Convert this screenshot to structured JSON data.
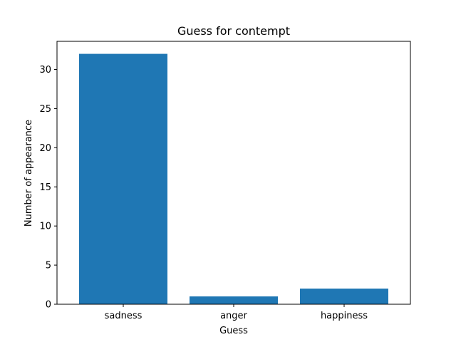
{
  "chart_data": {
    "type": "bar",
    "title": "Guess for contempt",
    "xlabel": "Guess",
    "ylabel": "Number of appearance",
    "categories": [
      "sadness",
      "anger",
      "happiness"
    ],
    "values": [
      32,
      1,
      2
    ],
    "ylim": [
      0,
      33.6
    ],
    "yticks": [
      0,
      5,
      10,
      15,
      20,
      25,
      30
    ],
    "bar_color": "#1f77b4",
    "grid": false
  }
}
